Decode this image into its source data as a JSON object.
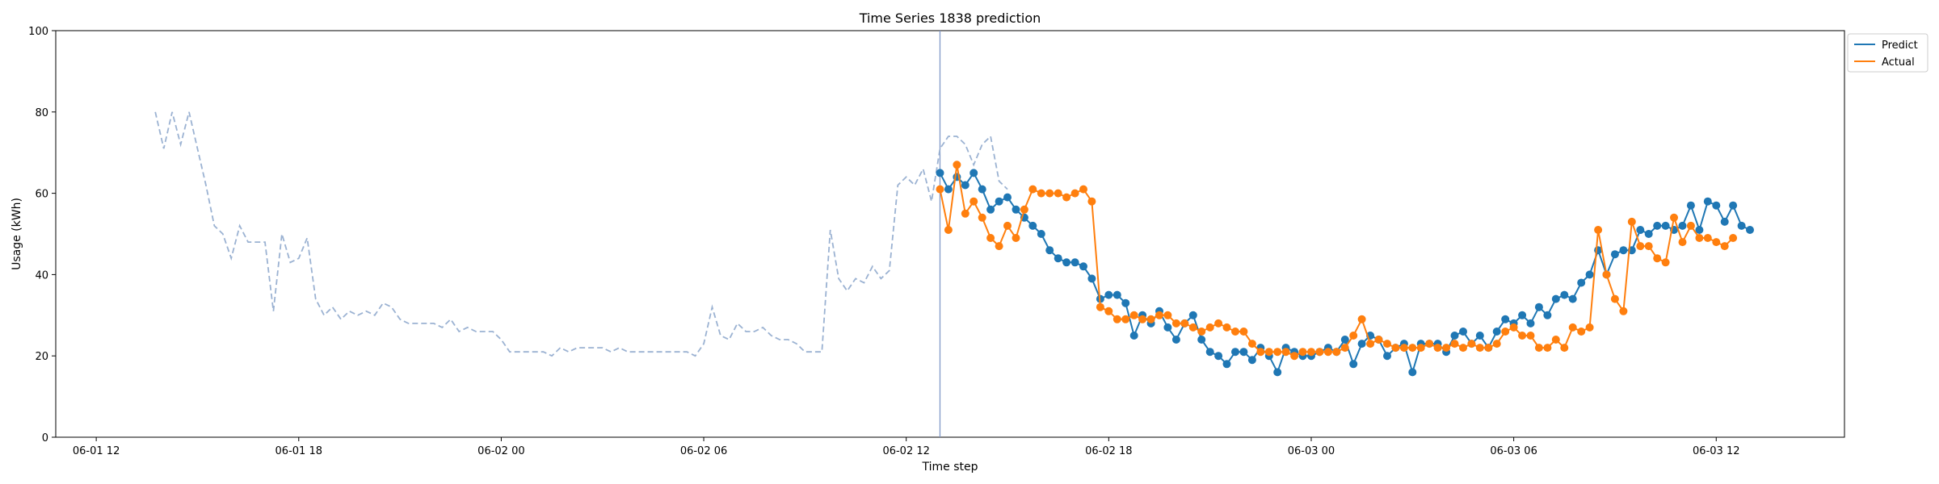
{
  "chart_data": {
    "type": "line",
    "title": "Time Series 1838 prediction",
    "xlabel": "Time step",
    "ylabel": "Usage (kWh)",
    "ylim": [
      0,
      100
    ],
    "xlim": [
      "2018-06-01 10:48",
      "2018-06-03 15:48"
    ],
    "yticks": [
      0,
      20,
      40,
      60,
      80,
      100
    ],
    "xticks": [
      {
        "t": "2018-06-01 12:00",
        "label": "06-01 12"
      },
      {
        "t": "2018-06-01 18:00",
        "label": "06-01 18"
      },
      {
        "t": "2018-06-02 00:00",
        "label": "06-02 00"
      },
      {
        "t": "2018-06-02 06:00",
        "label": "06-02 06"
      },
      {
        "t": "2018-06-02 12:00",
        "label": "06-02 12"
      },
      {
        "t": "2018-06-02 18:00",
        "label": "06-02 18"
      },
      {
        "t": "2018-06-03 00:00",
        "label": "06-03 00"
      },
      {
        "t": "2018-06-03 06:00",
        "label": "06-03 06"
      },
      {
        "t": "2018-06-03 12:00",
        "label": "06-03 12"
      }
    ],
    "grid": false,
    "legend_position": "top-right",
    "forecast_start": "2018-06-02 13:00",
    "history": {
      "start": "2018-06-01 13:45",
      "step_minutes": 15,
      "style": "dashed",
      "color": "#9bb2d2",
      "values": [
        80,
        71,
        80,
        72,
        80,
        71,
        62,
        52,
        50,
        44,
        52,
        48,
        48,
        48,
        31,
        50,
        43,
        44,
        49,
        34,
        30,
        32,
        29,
        31,
        30,
        31,
        30,
        33,
        32,
        29,
        28,
        28,
        28,
        28,
        27,
        29,
        26,
        27,
        26,
        26,
        26,
        24,
        21,
        21,
        21,
        21,
        21,
        20,
        22,
        21,
        22,
        22,
        22,
        22,
        21,
        22,
        21,
        21,
        21,
        21,
        21,
        21,
        21,
        21,
        20,
        23,
        32,
        25,
        24,
        28,
        26,
        26,
        27,
        25,
        24,
        24,
        23,
        21,
        21,
        21,
        51,
        39,
        36,
        39,
        38,
        42,
        39,
        41,
        62,
        64,
        62,
        66,
        58,
        71,
        74,
        74,
        72,
        67,
        72,
        74,
        63,
        61
      ]
    },
    "series": [
      {
        "name": "Predict",
        "color": "#1f77b4",
        "start": "2018-06-02 13:00",
        "step_minutes": 15,
        "values": [
          65,
          61,
          64,
          62,
          65,
          61,
          56,
          58,
          59,
          56,
          54,
          52,
          50,
          46,
          44,
          43,
          43,
          42,
          39,
          34,
          35,
          35,
          33,
          25,
          30,
          28,
          31,
          27,
          24,
          28,
          30,
          24,
          21,
          20,
          18,
          21,
          21,
          19,
          22,
          20,
          16,
          22,
          21,
          20,
          20,
          21,
          22,
          21,
          24,
          18,
          23,
          25,
          24,
          20,
          22,
          23,
          16,
          23,
          23,
          23,
          21,
          25,
          26,
          23,
          25,
          22,
          26,
          29,
          28,
          30,
          28,
          32,
          30,
          34,
          35,
          34,
          38,
          40,
          46,
          40,
          45,
          46,
          46,
          51,
          50,
          52,
          52,
          51,
          52,
          57,
          51,
          58,
          57,
          53,
          57,
          52,
          51
        ]
      },
      {
        "name": "Actual",
        "color": "#ff7f0e",
        "start": "2018-06-02 13:00",
        "step_minutes": 15,
        "values": [
          61,
          51,
          67,
          55,
          58,
          54,
          49,
          47,
          52,
          49,
          56,
          61,
          60,
          60,
          60,
          59,
          60,
          61,
          58,
          32,
          31,
          29,
          29,
          30,
          29,
          29,
          30,
          30,
          28,
          28,
          27,
          26,
          27,
          28,
          27,
          26,
          26,
          23,
          21,
          21,
          21,
          21,
          20,
          21,
          21,
          21,
          21,
          21,
          22,
          25,
          29,
          23,
          24,
          23,
          22,
          22,
          22,
          22,
          23,
          22,
          22,
          23,
          22,
          23,
          22,
          22,
          23,
          26,
          27,
          25,
          25,
          22,
          22,
          24,
          22,
          27,
          26,
          27,
          51,
          40,
          34,
          31,
          53,
          47,
          47,
          44,
          43,
          54,
          48,
          52,
          49,
          49,
          48,
          47,
          49
        ]
      }
    ]
  }
}
